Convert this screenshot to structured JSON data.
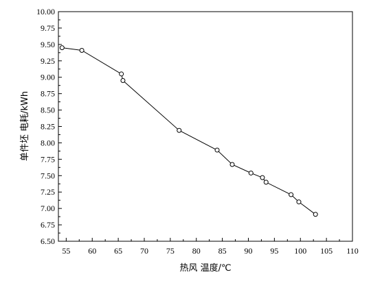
{
  "chart_data": {
    "type": "line",
    "xlabel": "热风 温度/℃",
    "ylabel": "单件坯 电耗/kWh",
    "xlim": [
      53.5,
      110
    ],
    "ylim": [
      6.5,
      10.0
    ],
    "xticks": [
      55,
      60,
      65,
      70,
      75,
      80,
      85,
      90,
      95,
      100,
      105,
      110
    ],
    "yticks": [
      6.5,
      6.75,
      7.0,
      7.25,
      7.5,
      7.75,
      8.0,
      8.25,
      8.5,
      8.75,
      9.0,
      9.25,
      9.5,
      9.75,
      10.0
    ],
    "xtick_labels": [
      "55",
      "60",
      "65",
      "70",
      "75",
      "80",
      "85",
      "90",
      "95",
      "100",
      "105",
      "110"
    ],
    "ytick_labels": [
      "6.50",
      "6.75",
      "7.00",
      "7.25",
      "7.50",
      "7.75",
      "8.00",
      "8.25",
      "8.50",
      "8.75",
      "9.00",
      "9.25",
      "9.50",
      "9.75",
      "10.00"
    ],
    "grid": false,
    "series": [
      {
        "x": [
          54.2,
          58.0,
          65.6,
          65.9,
          76.7,
          84.0,
          86.9,
          90.5,
          92.7,
          93.4,
          98.2,
          99.7,
          102.9
        ],
        "y": [
          9.45,
          9.41,
          9.05,
          8.95,
          8.19,
          7.89,
          7.67,
          7.54,
          7.47,
          7.4,
          7.21,
          7.1,
          6.91
        ]
      }
    ]
  }
}
